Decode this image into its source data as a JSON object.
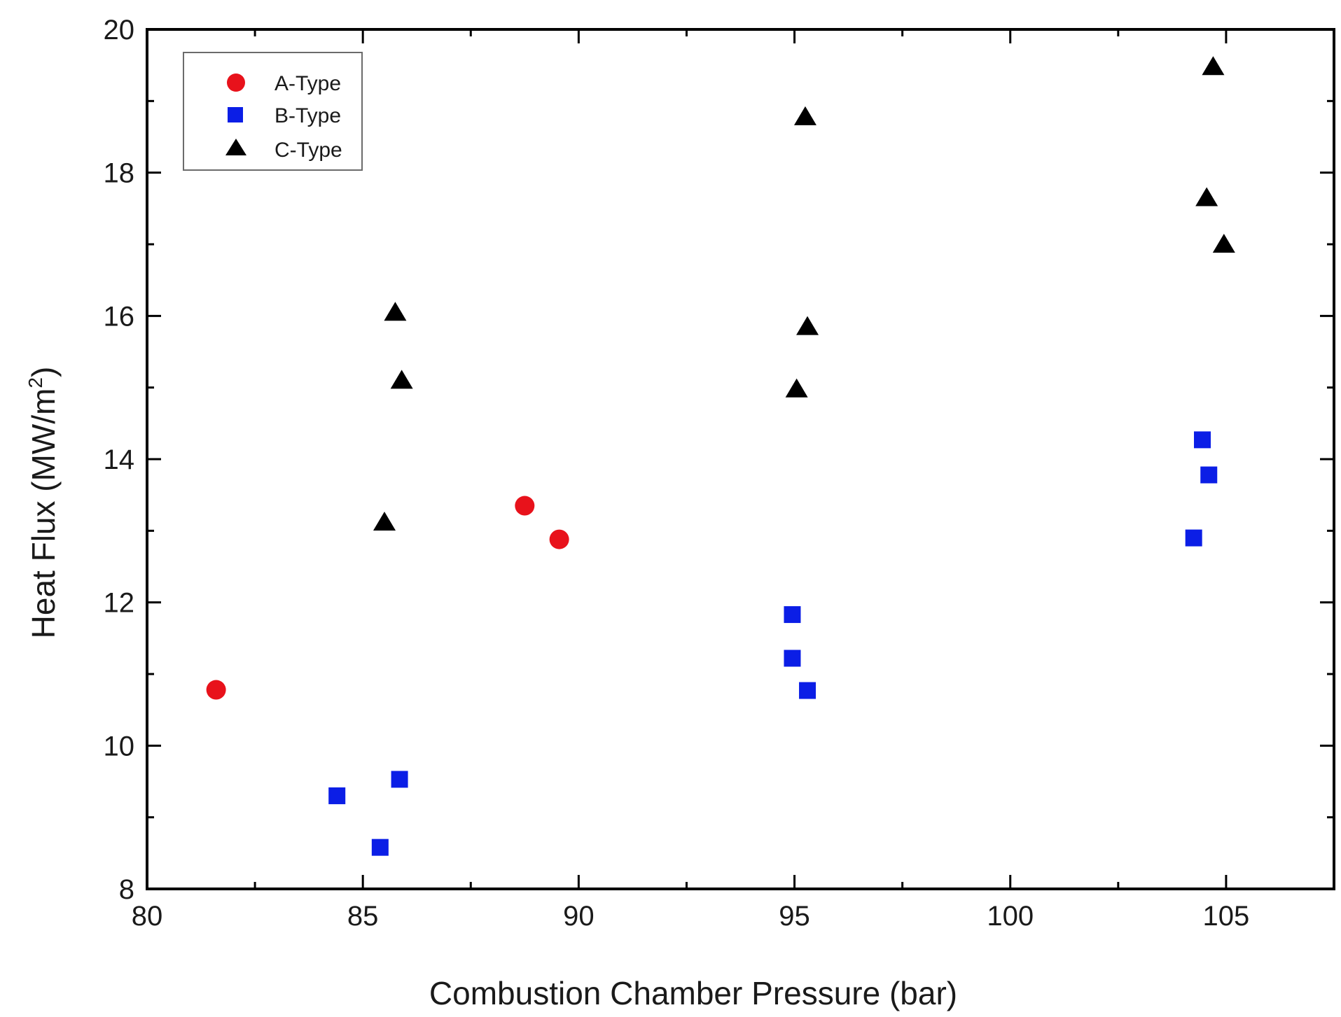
{
  "chart_data": {
    "type": "scatter",
    "title": "",
    "xlabel": "Combustion Chamber Pressure (bar)",
    "ylabel_main": "Heat Flux (MW/m",
    "ylabel_sup": "2",
    "ylabel_close": ")",
    "xlim": [
      80,
      107.5
    ],
    "ylim": [
      8,
      20
    ],
    "xticks": [
      80,
      85,
      90,
      95,
      100,
      105
    ],
    "xticks_minor": [
      82.5,
      87.5,
      92.5,
      97.5,
      102.5,
      107.5
    ],
    "yticks": [
      8,
      10,
      12,
      14,
      16,
      18,
      20
    ],
    "yticks_minor": [
      9,
      11,
      13,
      15,
      17,
      19
    ],
    "grid": false,
    "legend_position": "top-left",
    "series": [
      {
        "name": "A-Type",
        "marker": "circle",
        "color": "#e8121b",
        "points": [
          {
            "x": 81.6,
            "y": 10.78
          },
          {
            "x": 88.75,
            "y": 13.35
          },
          {
            "x": 89.55,
            "y": 12.88
          }
        ]
      },
      {
        "name": "B-Type",
        "marker": "square",
        "color": "#0b1ee6",
        "points": [
          {
            "x": 84.4,
            "y": 9.3
          },
          {
            "x": 85.4,
            "y": 8.58
          },
          {
            "x": 85.85,
            "y": 9.53
          },
          {
            "x": 94.95,
            "y": 11.83
          },
          {
            "x": 94.95,
            "y": 11.22
          },
          {
            "x": 95.3,
            "y": 10.77
          },
          {
            "x": 104.25,
            "y": 12.9
          },
          {
            "x": 104.45,
            "y": 14.27
          },
          {
            "x": 104.6,
            "y": 13.78
          }
        ]
      },
      {
        "name": "C-Type",
        "marker": "triangle",
        "color": "#000000",
        "points": [
          {
            "x": 85.5,
            "y": 13.12
          },
          {
            "x": 85.75,
            "y": 16.05
          },
          {
            "x": 85.9,
            "y": 15.1
          },
          {
            "x": 95.05,
            "y": 14.98
          },
          {
            "x": 95.3,
            "y": 15.85
          },
          {
            "x": 95.25,
            "y": 18.78
          },
          {
            "x": 104.55,
            "y": 17.65
          },
          {
            "x": 104.7,
            "y": 19.48
          },
          {
            "x": 104.95,
            "y": 17.0
          }
        ]
      }
    ]
  }
}
